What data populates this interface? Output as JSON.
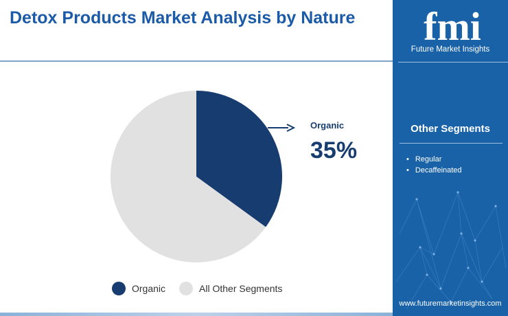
{
  "title": "Detox Products Market Analysis by Nature",
  "colors": {
    "organic": "#173d70",
    "others": "#e1e1e1",
    "sidebar": "#1962a8",
    "title": "#1b5aa6"
  },
  "chart_data": {
    "type": "pie",
    "title": "Detox Products Market Analysis by Nature",
    "slices": [
      {
        "label": "Organic",
        "value": 35
      },
      {
        "label": "All Other Segments",
        "value": 65
      }
    ],
    "callout": {
      "label": "Organic",
      "value": "35%"
    },
    "legend": [
      "Organic",
      "All Other Segments"
    ],
    "legend_position": "bottom"
  },
  "sidebar": {
    "logo_text": "fmi",
    "logo_subtitle": "Future Market Insights",
    "heading": "Other Segments",
    "segments": [
      "Regular",
      "Decaffeinated"
    ],
    "url": "www.futuremarketinsights.com"
  }
}
